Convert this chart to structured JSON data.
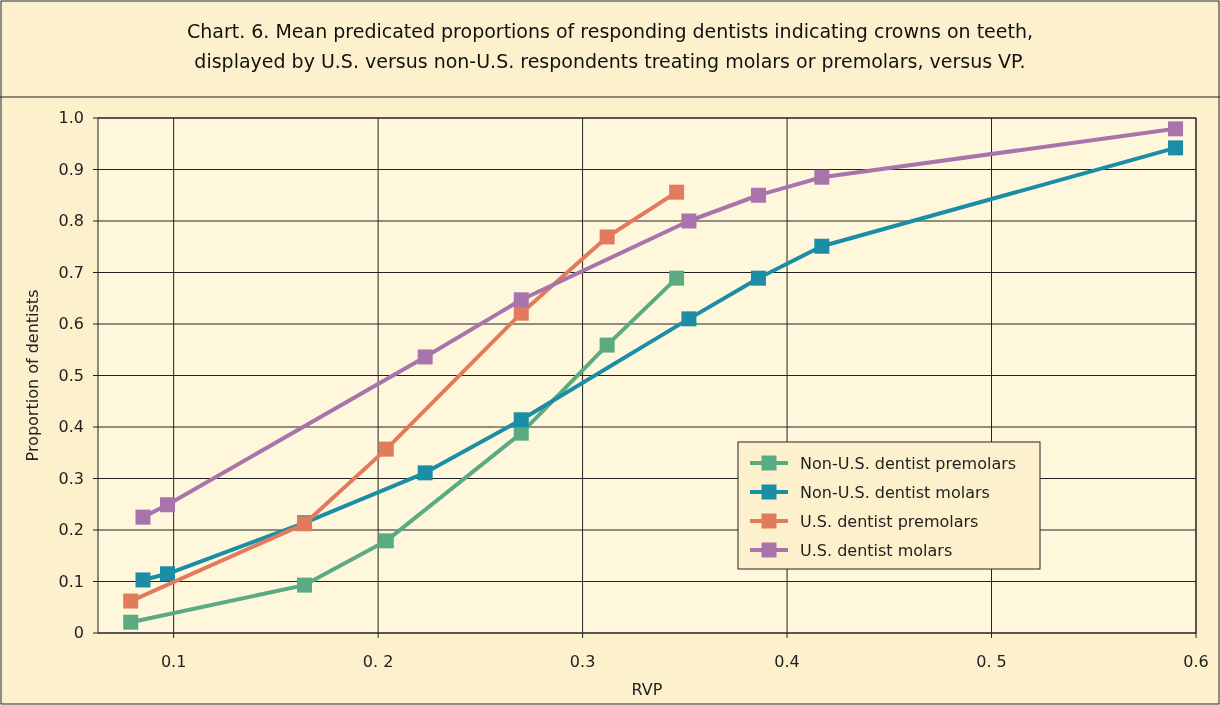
{
  "chart_data": {
    "type": "line",
    "title": "Chart. 6. Mean predicated proportions of responding dentists indicating crowns on teeth,\ndisplayed by U.S. versus non-U.S. respondents treating molars or premolars, versus VP.",
    "xlabel": "RVP",
    "ylabel": "Proportion of dentists",
    "xlim": [
      0.063,
      0.6
    ],
    "ylim": [
      0,
      1
    ],
    "xticks": [
      0.1,
      {
        "value": 0.2,
        "label": "0. 2"
      },
      0.3,
      0.4,
      {
        "value": 0.5,
        "label": "0. 5"
      },
      0.6
    ],
    "yticks": [
      0,
      0.1,
      0.2,
      0.3,
      0.4,
      0.5,
      0.6,
      0.7,
      0.8,
      0.9,
      {
        "value": 1,
        "label": "1.0"
      }
    ],
    "grid": true,
    "legend": "bottom right",
    "marker": "square",
    "line_style": "solid",
    "series": [
      {
        "name": "Non-U.S. dentist premolars",
        "color": "#5bab82",
        "x": [
          0.079,
          0.164,
          0.204,
          0.27,
          0.312,
          0.346
        ],
        "values": [
          0.021,
          0.093,
          0.179,
          0.388,
          0.559,
          0.689
        ]
      },
      {
        "name": "Non-U.S. dentist molars",
        "color": "#1b8ea6",
        "x": [
          0.085,
          0.097,
          0.164,
          0.223,
          0.27,
          0.352,
          0.386,
          0.417,
          0.59
        ],
        "values": [
          0.103,
          0.115,
          0.214,
          0.311,
          0.414,
          0.61,
          0.689,
          0.751,
          0.942
        ]
      },
      {
        "name": "U.S. dentist premolars",
        "color": "#e27b5c",
        "x": [
          0.079,
          0.164,
          0.204,
          0.27,
          0.312,
          0.346
        ],
        "values": [
          0.062,
          0.212,
          0.357,
          0.621,
          0.769,
          0.856
        ]
      },
      {
        "name": "U.S. dentist molars",
        "color": "#a874ab",
        "x": [
          0.085,
          0.097,
          0.223,
          0.27,
          0.352,
          0.386,
          0.417,
          0.59
        ],
        "values": [
          0.225,
          0.249,
          0.536,
          0.647,
          0.8,
          0.85,
          0.885,
          0.979
        ]
      }
    ]
  }
}
